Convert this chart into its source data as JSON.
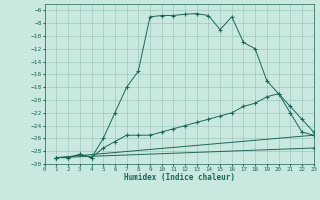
{
  "title": "",
  "xlabel": "Humidex (Indice chaleur)",
  "bg_color": "#c8e8e0",
  "grid_color": "#a0c8c0",
  "line_color": "#1a6858",
  "xlim": [
    0,
    23
  ],
  "ylim": [
    -30,
    -5
  ],
  "xticks": [
    0,
    1,
    2,
    3,
    4,
    5,
    6,
    7,
    8,
    9,
    10,
    11,
    12,
    13,
    14,
    15,
    16,
    17,
    18,
    19,
    20,
    21,
    22,
    23
  ],
  "yticks": [
    -30,
    -28,
    -26,
    -24,
    -22,
    -20,
    -18,
    -16,
    -14,
    -12,
    -10,
    -8,
    -6
  ],
  "line1_x": [
    1,
    2,
    3,
    4,
    5,
    6,
    7,
    8,
    9,
    10,
    11,
    12,
    13,
    14,
    15,
    16,
    17,
    18,
    19,
    20,
    21,
    22,
    23
  ],
  "line1_y": [
    -29,
    -29,
    -28.5,
    -29,
    -26,
    -22,
    -18,
    -15.5,
    -7,
    -6.8,
    -6.8,
    -6.6,
    -6.5,
    -6.8,
    -9.0,
    -7.0,
    -11,
    -12,
    -17,
    -19,
    -22,
    -25,
    -25.5
  ],
  "line2_x": [
    1,
    2,
    3,
    4,
    5,
    6,
    7,
    8,
    9,
    10,
    11,
    12,
    13,
    14,
    15,
    16,
    17,
    18,
    19,
    20,
    21,
    22,
    23
  ],
  "line2_y": [
    -29,
    -29,
    -28.5,
    -29,
    -27.5,
    -26.5,
    -25.5,
    -25.5,
    -25.5,
    -25,
    -24.5,
    -24,
    -23.5,
    -23,
    -22.5,
    -22,
    -21,
    -20.5,
    -19.5,
    -19,
    -21,
    -23,
    -25
  ],
  "line3_x": [
    1,
    23
  ],
  "line3_y": [
    -29,
    -25.5
  ],
  "line4_x": [
    1,
    23
  ],
  "line4_y": [
    -29,
    -27.5
  ]
}
